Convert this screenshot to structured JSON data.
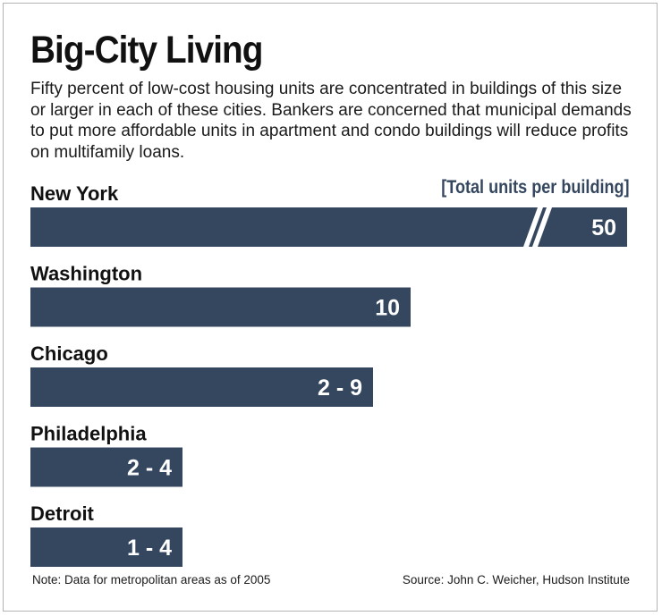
{
  "title": "Big-City Living",
  "subtitle": "Fifty percent of low-cost housing units are concentrated in buildings of this size or larger in each of these cities. Bankers are concerned that municipal demands to put more affordable units in apartment and condo buildings will reduce profits on multifamily loans.",
  "unit_label": "[Total units per building]",
  "note": "Note: Data for metropolitan areas as of 2005",
  "source": "Source: John C. Weicher, Hudson Institute",
  "colors": {
    "bar": "#34475f",
    "unit_label": "#34475f",
    "value_text": "#ffffff"
  },
  "chart_data": {
    "type": "bar",
    "orientation": "horizontal",
    "title": "Big-City Living",
    "xlabel": "[Total units per building]",
    "ylabel": "",
    "axis_break_on": "New York",
    "grid": false,
    "legend": "none",
    "categories": [
      "New York",
      "Washington",
      "Chicago",
      "Philadelphia",
      "Detroit"
    ],
    "values": [
      50,
      10,
      9,
      4,
      4
    ],
    "value_labels": [
      "50",
      "10",
      "2 - 9",
      "2 - 4",
      "1 - 4"
    ]
  }
}
